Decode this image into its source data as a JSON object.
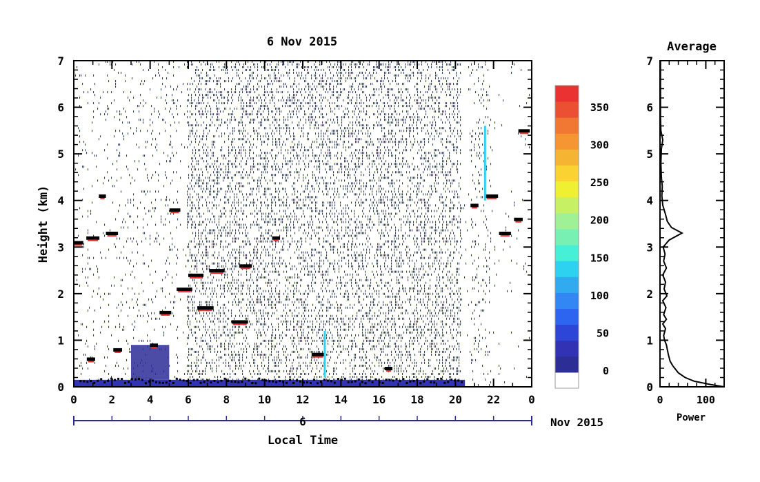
{
  "chart_data": [
    {
      "type": "heatmap",
      "title": "6 Nov 2015",
      "xlabel": "Local Time",
      "ylabel": "Height (km)",
      "x_ticks": [
        "0",
        "2",
        "4",
        "6",
        "8",
        "10",
        "12",
        "14",
        "16",
        "18",
        "20",
        "22",
        "0"
      ],
      "y_ticks": [
        "0",
        "1",
        "2",
        "3",
        "4",
        "5",
        "6",
        "7"
      ],
      "xlim": [
        0,
        24
      ],
      "ylim": [
        0,
        7
      ],
      "date_bar": {
        "day": "6",
        "month_year": "Nov 2015"
      },
      "colorbar": {
        "ticks": [
          "0",
          "50",
          "100",
          "150",
          "200",
          "250",
          "300",
          "350"
        ],
        "range": [
          0,
          375
        ],
        "colors": [
          "#ffffff",
          "#2d2d96",
          "#3232b4",
          "#2d46d7",
          "#2d64f0",
          "#3287f5",
          "#32aaf0",
          "#2dd2f0",
          "#46f0d7",
          "#78f0b4",
          "#a0f096",
          "#c8f064",
          "#f0f032",
          "#fad232",
          "#f5b432",
          "#f59632",
          "#f07832",
          "#eb5032",
          "#eb3232"
        ]
      },
      "features": [
        {
          "desc": "surface_layer",
          "t0": 0,
          "t1": 20.5,
          "z0": 0,
          "z1": 0.15
        },
        {
          "desc": "morning_layer_base",
          "t0": 3,
          "t1": 5,
          "z0": 0.15,
          "z1": 0.9
        },
        {
          "desc": "cloud_segments",
          "points": [
            [
              0.2,
              3.1
            ],
            [
              1.0,
              3.2
            ],
            [
              1.5,
              4.1
            ],
            [
              2.0,
              3.3
            ],
            [
              5.3,
              3.8
            ],
            [
              4.8,
              1.6
            ],
            [
              5.8,
              2.1
            ],
            [
              6.4,
              2.4
            ],
            [
              6.9,
              1.7
            ],
            [
              7.5,
              2.5
            ],
            [
              8.7,
              1.4
            ],
            [
              9.0,
              2.6
            ],
            [
              10.6,
              3.2
            ],
            [
              21.0,
              3.9
            ],
            [
              21.9,
              4.1
            ],
            [
              22.6,
              3.3
            ],
            [
              23.3,
              3.6
            ],
            [
              23.6,
              5.5
            ],
            [
              0.9,
              0.6
            ],
            [
              2.3,
              0.8
            ],
            [
              4.2,
              0.9
            ],
            [
              12.8,
              0.7
            ],
            [
              16.5,
              0.4
            ]
          ]
        }
      ]
    },
    {
      "type": "line",
      "title": "Average",
      "xlabel": "Power",
      "x_ticks": [
        "0",
        "100"
      ],
      "y_ticks": [
        "0",
        "1",
        "2",
        "3",
        "4",
        "5",
        "6",
        "7"
      ],
      "xlim": [
        0,
        140
      ],
      "ylim": [
        0,
        7
      ],
      "series": [
        {
          "points": [
            [
              140,
              0.0
            ],
            [
              110,
              0.05
            ],
            [
              75,
              0.12
            ],
            [
              55,
              0.2
            ],
            [
              40,
              0.3
            ],
            [
              28,
              0.45
            ],
            [
              22,
              0.55
            ],
            [
              18,
              0.7
            ],
            [
              16,
              0.8
            ],
            [
              14,
              0.9
            ],
            [
              10,
              1.0
            ],
            [
              8,
              1.1
            ],
            [
              12,
              1.25
            ],
            [
              6,
              1.35
            ],
            [
              14,
              1.45
            ],
            [
              8,
              1.55
            ],
            [
              13,
              1.7
            ],
            [
              6,
              1.85
            ],
            [
              15,
              1.95
            ],
            [
              9,
              2.1
            ],
            [
              12,
              2.25
            ],
            [
              6,
              2.4
            ],
            [
              14,
              2.55
            ],
            [
              8,
              2.7
            ],
            [
              11,
              2.85
            ],
            [
              7,
              3.0
            ],
            [
              20,
              3.15
            ],
            [
              48,
              3.3
            ],
            [
              25,
              3.42
            ],
            [
              16,
              3.55
            ],
            [
              12,
              3.7
            ],
            [
              6,
              3.9
            ],
            [
              4,
              4.1
            ],
            [
              5,
              4.3
            ],
            [
              3,
              4.5
            ],
            [
              2,
              4.8
            ],
            [
              3,
              5.1
            ],
            [
              6,
              5.3
            ],
            [
              2,
              5.5
            ],
            [
              1,
              5.8
            ],
            [
              1,
              6.2
            ],
            [
              1,
              6.6
            ],
            [
              1,
              7.0
            ]
          ]
        }
      ]
    }
  ]
}
